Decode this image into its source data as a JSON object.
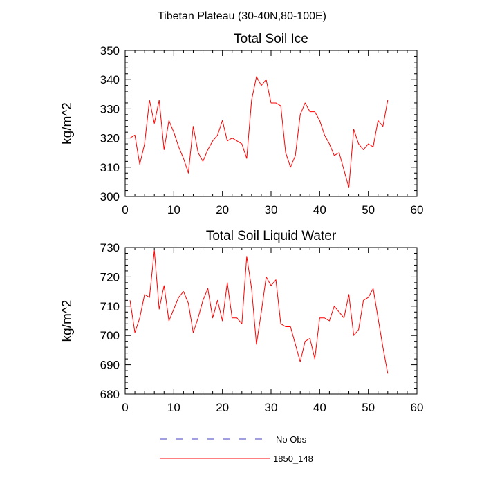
{
  "figure": {
    "title": "Tibetan Plateau (30-40N,80-100E)",
    "series_color": "#ff0000",
    "legend": [
      {
        "label": "No Obs",
        "style": "dashed",
        "color": "#4040c0"
      },
      {
        "label": "1850_148",
        "style": "solid",
        "color": "#ff0000"
      }
    ]
  },
  "chart_data": [
    {
      "type": "line",
      "title": "Total Soil Ice",
      "xlabel": "",
      "ylabel": "kg/m^2",
      "xlim": [
        0,
        60
      ],
      "ylim": [
        300,
        350
      ],
      "xticks": [
        0,
        10,
        20,
        30,
        40,
        50,
        60
      ],
      "yticks": [
        300,
        310,
        320,
        330,
        340,
        350
      ],
      "grid": false,
      "series": [
        {
          "name": "1850_148",
          "x": [
            1,
            2,
            3,
            4,
            5,
            6,
            7,
            8,
            9,
            10,
            11,
            12,
            13,
            14,
            15,
            16,
            17,
            18,
            19,
            20,
            21,
            22,
            23,
            24,
            25,
            26,
            27,
            28,
            29,
            30,
            31,
            32,
            33,
            34,
            35,
            36,
            37,
            38,
            39,
            40,
            41,
            42,
            43,
            44,
            45,
            46,
            47,
            48,
            49,
            50,
            51,
            52,
            53,
            54
          ],
          "y": [
            320,
            321,
            311,
            318,
            333,
            325,
            333,
            316,
            326,
            322,
            317,
            313,
            308,
            324,
            315,
            312,
            316,
            319,
            321,
            326,
            319,
            320,
            319,
            318,
            313,
            333,
            341,
            338,
            340,
            332,
            332,
            331,
            315,
            310,
            314,
            328,
            332,
            329,
            329,
            326,
            321,
            318,
            314,
            315,
            309,
            303,
            323,
            318,
            316,
            318,
            317,
            326,
            324,
            333
          ]
        }
      ]
    },
    {
      "type": "line",
      "title": "Total Soil Liquid Water",
      "xlabel": "",
      "ylabel": "kg/m^2",
      "xlim": [
        0,
        60
      ],
      "ylim": [
        680,
        730
      ],
      "xticks": [
        0,
        10,
        20,
        30,
        40,
        50,
        60
      ],
      "yticks": [
        680,
        690,
        700,
        710,
        720,
        730
      ],
      "grid": false,
      "series": [
        {
          "name": "1850_148",
          "x": [
            1,
            2,
            3,
            4,
            5,
            6,
            7,
            8,
            9,
            10,
            11,
            12,
            13,
            14,
            15,
            16,
            17,
            18,
            19,
            20,
            21,
            22,
            23,
            24,
            25,
            26,
            27,
            28,
            29,
            30,
            31,
            32,
            33,
            34,
            35,
            36,
            37,
            38,
            39,
            40,
            41,
            42,
            43,
            44,
            45,
            46,
            47,
            48,
            49,
            50,
            51,
            52,
            53,
            54
          ],
          "y": [
            712,
            701,
            706,
            714,
            713,
            729,
            709,
            717,
            705,
            709,
            713,
            715,
            711,
            701,
            706,
            712,
            716,
            706,
            712,
            705,
            718,
            706,
            706,
            704,
            727,
            716,
            697,
            708,
            720,
            717,
            719,
            704,
            703,
            703,
            697,
            691,
            698,
            699,
            692,
            706,
            706,
            705,
            710,
            708,
            706,
            714,
            700,
            702,
            712,
            713,
            716,
            706,
            696,
            687
          ]
        }
      ]
    }
  ]
}
